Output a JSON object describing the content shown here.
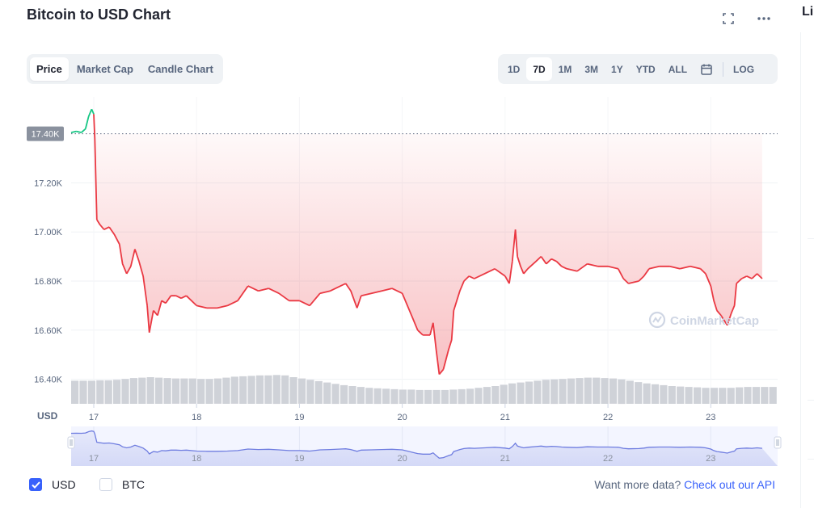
{
  "title": "Bitcoin to USD Chart",
  "side_title_fragment": "Li",
  "tabs": [
    {
      "label": "Price",
      "active": true
    },
    {
      "label": "Market Cap",
      "active": false
    },
    {
      "label": "Candle Chart",
      "active": false
    }
  ],
  "ranges": [
    {
      "label": "1D",
      "active": false
    },
    {
      "label": "7D",
      "active": true
    },
    {
      "label": "1M",
      "active": false
    },
    {
      "label": "3M",
      "active": false
    },
    {
      "label": "1Y",
      "active": false
    },
    {
      "label": "YTD",
      "active": false
    },
    {
      "label": "ALL",
      "active": false
    }
  ],
  "log_label": "LOG",
  "icons": {
    "expand": "expand-icon",
    "more": "more-icon",
    "calendar": "calendar-icon"
  },
  "watermark": "CoinMarketCap",
  "currency_axis_label": "USD",
  "footer": {
    "usd_label": "USD",
    "btc_label": "BTC",
    "usd_checked": true,
    "btc_checked": false,
    "api_text": "Want more data?",
    "api_link": "Check out our API"
  },
  "colors": {
    "up": "#16c784",
    "down": "#ea3943",
    "accent": "#3861fb",
    "navigator_line": "#6f7de0",
    "volume": "#cfd2d8"
  },
  "chart_data": {
    "type": "line",
    "ylim": [
      16300,
      17550
    ],
    "xlim": [
      16.78,
      23.65
    ],
    "yticks": [
      {
        "label": "17.20K",
        "value": 17200
      },
      {
        "label": "17.00K",
        "value": 17000
      },
      {
        "label": "16.80K",
        "value": 16800
      },
      {
        "label": "16.60K",
        "value": 16600
      },
      {
        "label": "16.40K",
        "value": 16400
      }
    ],
    "xticks": [
      {
        "label": "17",
        "value": 17
      },
      {
        "label": "18",
        "value": 18
      },
      {
        "label": "19",
        "value": 19
      },
      {
        "label": "20",
        "value": 20
      },
      {
        "label": "21",
        "value": 21
      },
      {
        "label": "22",
        "value": 22
      },
      {
        "label": "23",
        "value": 23
      }
    ],
    "reference_price": {
      "label": "17.40K",
      "value": 17400
    },
    "price": [
      [
        16.78,
        17405
      ],
      [
        16.83,
        17410
      ],
      [
        16.88,
        17405
      ],
      [
        16.92,
        17420
      ],
      [
        16.95,
        17470
      ],
      [
        16.98,
        17500
      ],
      [
        17.0,
        17480
      ],
      [
        17.01,
        17380
      ],
      [
        17.03,
        17050
      ],
      [
        17.06,
        17030
      ],
      [
        17.1,
        17010
      ],
      [
        17.15,
        17020
      ],
      [
        17.2,
        16990
      ],
      [
        17.25,
        16950
      ],
      [
        17.28,
        16870
      ],
      [
        17.32,
        16830
      ],
      [
        17.36,
        16860
      ],
      [
        17.4,
        16930
      ],
      [
        17.44,
        16880
      ],
      [
        17.48,
        16820
      ],
      [
        17.52,
        16700
      ],
      [
        17.54,
        16590
      ],
      [
        17.58,
        16680
      ],
      [
        17.62,
        16660
      ],
      [
        17.66,
        16720
      ],
      [
        17.7,
        16710
      ],
      [
        17.75,
        16740
      ],
      [
        17.8,
        16740
      ],
      [
        17.85,
        16730
      ],
      [
        17.9,
        16740
      ],
      [
        18.0,
        16700
      ],
      [
        18.1,
        16690
      ],
      [
        18.2,
        16690
      ],
      [
        18.3,
        16700
      ],
      [
        18.4,
        16720
      ],
      [
        18.5,
        16780
      ],
      [
        18.6,
        16760
      ],
      [
        18.7,
        16770
      ],
      [
        18.8,
        16750
      ],
      [
        18.9,
        16720
      ],
      [
        19.0,
        16720
      ],
      [
        19.1,
        16700
      ],
      [
        19.2,
        16750
      ],
      [
        19.3,
        16760
      ],
      [
        19.4,
        16780
      ],
      [
        19.45,
        16790
      ],
      [
        19.5,
        16760
      ],
      [
        19.56,
        16690
      ],
      [
        19.6,
        16740
      ],
      [
        19.7,
        16750
      ],
      [
        19.8,
        16760
      ],
      [
        19.9,
        16770
      ],
      [
        20.0,
        16750
      ],
      [
        20.05,
        16700
      ],
      [
        20.1,
        16650
      ],
      [
        20.15,
        16600
      ],
      [
        20.2,
        16580
      ],
      [
        20.27,
        16580
      ],
      [
        20.3,
        16630
      ],
      [
        20.33,
        16520
      ],
      [
        20.36,
        16420
      ],
      [
        20.4,
        16440
      ],
      [
        20.45,
        16520
      ],
      [
        20.48,
        16560
      ],
      [
        20.5,
        16680
      ],
      [
        20.53,
        16720
      ],
      [
        20.56,
        16760
      ],
      [
        20.6,
        16800
      ],
      [
        20.65,
        16820
      ],
      [
        20.7,
        16810
      ],
      [
        20.8,
        16830
      ],
      [
        20.9,
        16850
      ],
      [
        21.0,
        16820
      ],
      [
        21.04,
        16790
      ],
      [
        21.07,
        16880
      ],
      [
        21.1,
        17010
      ],
      [
        21.12,
        16900
      ],
      [
        21.15,
        16860
      ],
      [
        21.18,
        16830
      ],
      [
        21.22,
        16850
      ],
      [
        21.3,
        16880
      ],
      [
        21.35,
        16900
      ],
      [
        21.4,
        16870
      ],
      [
        21.45,
        16890
      ],
      [
        21.5,
        16880
      ],
      [
        21.55,
        16860
      ],
      [
        21.6,
        16850
      ],
      [
        21.7,
        16840
      ],
      [
        21.8,
        16870
      ],
      [
        21.9,
        16860
      ],
      [
        22.0,
        16860
      ],
      [
        22.1,
        16850
      ],
      [
        22.15,
        16810
      ],
      [
        22.2,
        16790
      ],
      [
        22.3,
        16800
      ],
      [
        22.35,
        16820
      ],
      [
        22.4,
        16850
      ],
      [
        22.5,
        16860
      ],
      [
        22.6,
        16860
      ],
      [
        22.7,
        16850
      ],
      [
        22.8,
        16860
      ],
      [
        22.9,
        16850
      ],
      [
        22.95,
        16830
      ],
      [
        23.0,
        16780
      ],
      [
        23.03,
        16720
      ],
      [
        23.06,
        16680
      ],
      [
        23.1,
        16660
      ],
      [
        23.13,
        16640
      ],
      [
        23.16,
        16620
      ],
      [
        23.2,
        16670
      ],
      [
        23.23,
        16700
      ],
      [
        23.25,
        16790
      ],
      [
        23.3,
        16810
      ],
      [
        23.35,
        16820
      ],
      [
        23.4,
        16810
      ],
      [
        23.45,
        16830
      ],
      [
        23.5,
        16810
      ]
    ],
    "volume_relative": [
      0.52,
      0.52,
      0.52,
      0.53,
      0.53,
      0.54,
      0.56,
      0.58,
      0.59,
      0.6,
      0.59,
      0.58,
      0.57,
      0.57,
      0.57,
      0.56,
      0.56,
      0.57,
      0.59,
      0.61,
      0.62,
      0.63,
      0.64,
      0.64,
      0.65,
      0.64,
      0.6,
      0.57,
      0.54,
      0.51,
      0.48,
      0.45,
      0.42,
      0.4,
      0.38,
      0.36,
      0.35,
      0.34,
      0.33,
      0.32,
      0.32,
      0.31,
      0.31,
      0.31,
      0.31,
      0.32,
      0.33,
      0.34,
      0.36,
      0.38,
      0.4,
      0.43,
      0.46,
      0.48,
      0.5,
      0.52,
      0.54,
      0.55,
      0.56,
      0.57,
      0.58,
      0.59,
      0.59,
      0.58,
      0.57,
      0.55,
      0.52,
      0.49,
      0.46,
      0.44,
      0.42,
      0.4,
      0.39,
      0.38,
      0.37,
      0.36,
      0.36,
      0.36,
      0.36,
      0.37,
      0.38,
      0.38,
      0.38,
      0.38
    ]
  }
}
